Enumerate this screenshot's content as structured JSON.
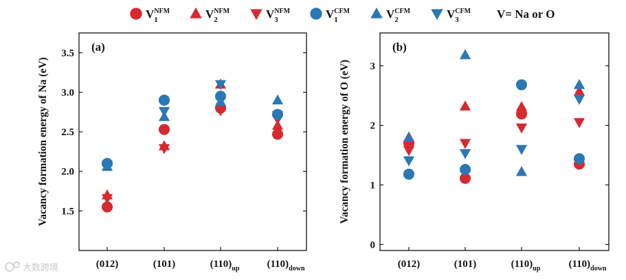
{
  "colors": {
    "nfm": "#d62a31",
    "cfm": "#2b78b4",
    "axis": "#111111",
    "watermark": "#c9c9c9"
  },
  "legend": {
    "entries": [
      {
        "id": "nfm1",
        "base": "V",
        "sub": "1",
        "sup": "NFM",
        "marker": "circle",
        "color": "nfm"
      },
      {
        "id": "nfm2",
        "base": "V",
        "sub": "2",
        "sup": "NFM",
        "marker": "triangle-up",
        "color": "nfm"
      },
      {
        "id": "nfm3",
        "base": "V",
        "sub": "3",
        "sup": "NFM",
        "marker": "triangle-down",
        "color": "nfm"
      },
      {
        "id": "cfm1",
        "base": "V",
        "sub": "1",
        "sup": "CFM",
        "marker": "circle",
        "color": "cfm"
      },
      {
        "id": "cfm2",
        "base": "V",
        "sub": "2",
        "sup": "CFM",
        "marker": "triangle-up",
        "color": "cfm"
      },
      {
        "id": "cfm3",
        "base": "V",
        "sub": "3",
        "sup": "CFM",
        "marker": "triangle-down",
        "color": "cfm"
      }
    ],
    "note": "V= Na or O"
  },
  "chart_data": [
    {
      "type": "scatter",
      "panel": "(a)",
      "ylabel": "Vacancy formation energy of Na (eV)",
      "ylim": [
        1.0,
        3.75
      ],
      "yticks": [
        "1.5",
        "2.0",
        "2.5",
        "3.0",
        "3.5"
      ],
      "ytick_values": [
        1.5,
        2.0,
        2.5,
        3.0,
        3.5
      ],
      "categories": [
        {
          "main": "(012)",
          "sub": ""
        },
        {
          "main": "(101)",
          "sub": ""
        },
        {
          "main": "(110)",
          "sub": "up"
        },
        {
          "main": "(110)",
          "sub": "down"
        }
      ],
      "series": [
        {
          "name": "V1 NFM",
          "values": [
            1.55,
            2.53,
            2.8,
            2.47
          ]
        },
        {
          "name": "V2 NFM",
          "values": [
            1.7,
            2.32,
            3.1,
            2.58
          ]
        },
        {
          "name": "V3 NFM",
          "values": [
            1.66,
            2.29,
            2.77,
            2.66
          ]
        },
        {
          "name": "V1 CFM",
          "values": [
            2.1,
            2.9,
            2.95,
            2.72
          ]
        },
        {
          "name": "V2 CFM",
          "values": [
            2.06,
            2.69,
            2.88,
            2.9
          ]
        },
        {
          "name": "V3 CFM",
          "values": [
            2.08,
            2.76,
            3.1,
            2.71
          ]
        }
      ]
    },
    {
      "type": "scatter",
      "panel": "(b)",
      "ylabel": "Vacancy formation energy of O (eV)",
      "ylim": [
        -0.1,
        3.55
      ],
      "yticks": [
        "0",
        "1",
        "2",
        "3"
      ],
      "ytick_values": [
        0,
        1,
        2,
        3
      ],
      "categories": [
        {
          "main": "(012)",
          "sub": ""
        },
        {
          "main": "(101)",
          "sub": ""
        },
        {
          "main": "(110)",
          "sub": "up"
        },
        {
          "main": "(110)",
          "sub": "down"
        }
      ],
      "series": [
        {
          "name": "V1 NFM",
          "values": [
            1.7,
            1.11,
            2.19,
            1.35
          ]
        },
        {
          "name": "V2 NFM",
          "values": [
            1.8,
            2.32,
            2.31,
            2.57
          ]
        },
        {
          "name": "V3 NFM",
          "values": [
            1.58,
            1.7,
            1.96,
            2.05
          ]
        },
        {
          "name": "V1 CFM",
          "values": [
            1.18,
            1.26,
            2.68,
            1.44
          ]
        },
        {
          "name": "V2 CFM",
          "values": [
            1.79,
            3.18,
            1.22,
            2.68
          ]
        },
        {
          "name": "V3 CFM",
          "values": [
            1.41,
            1.53,
            1.6,
            2.44
          ]
        }
      ]
    }
  ],
  "watermark": "大数跨境"
}
